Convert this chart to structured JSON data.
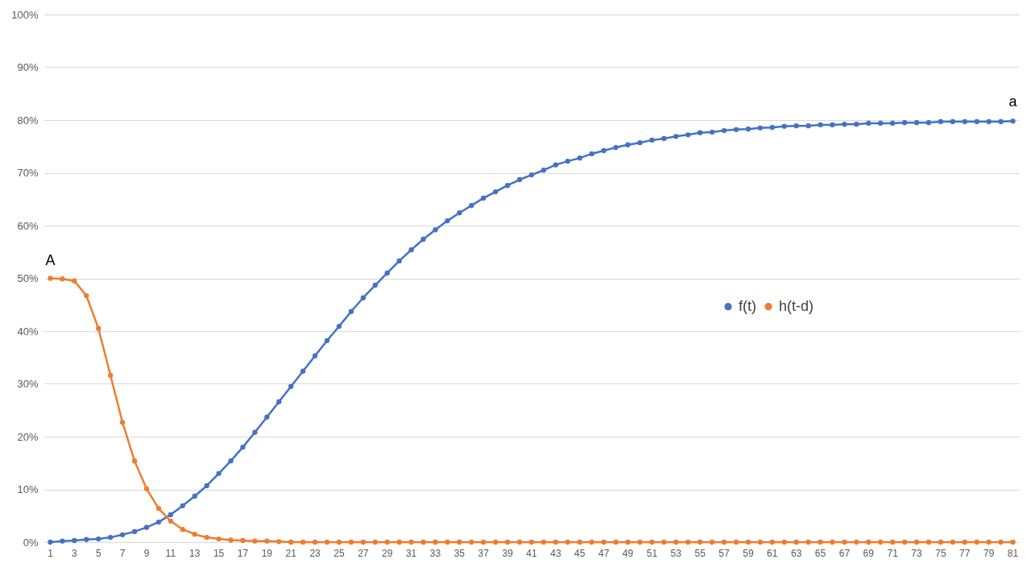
{
  "chart_data": {
    "type": "line",
    "x": [
      1,
      2,
      3,
      4,
      5,
      6,
      7,
      8,
      9,
      10,
      11,
      12,
      13,
      14,
      15,
      16,
      17,
      18,
      19,
      20,
      21,
      22,
      23,
      24,
      25,
      26,
      27,
      28,
      29,
      30,
      31,
      32,
      33,
      34,
      35,
      36,
      37,
      38,
      39,
      40,
      41,
      42,
      43,
      44,
      45,
      46,
      47,
      48,
      49,
      50,
      51,
      52,
      53,
      54,
      55,
      56,
      57,
      58,
      59,
      60,
      61,
      62,
      63,
      64,
      65,
      66,
      67,
      68,
      69,
      70,
      71,
      72,
      73,
      74,
      75,
      76,
      77,
      78,
      79,
      80,
      81
    ],
    "xlim": [
      0.5,
      81.5
    ],
    "xticks": [
      1,
      3,
      5,
      7,
      9,
      11,
      13,
      15,
      17,
      19,
      21,
      23,
      25,
      27,
      29,
      31,
      33,
      35,
      37,
      39,
      41,
      43,
      45,
      47,
      49,
      51,
      53,
      55,
      57,
      59,
      61,
      63,
      65,
      67,
      69,
      71,
      73,
      75,
      77,
      79,
      81
    ],
    "series": [
      {
        "name": "f(t)",
        "color": "#4472c4",
        "values": [
          0,
          0.2,
          0.3,
          0.5,
          0.6,
          0.9,
          1.4,
          2.0,
          2.8,
          3.8,
          5.2,
          6.9,
          8.7,
          10.7,
          13.0,
          15.4,
          18.0,
          20.8,
          23.7,
          26.6,
          29.5,
          32.4,
          35.3,
          38.2,
          40.9,
          43.7,
          46.3,
          48.7,
          51.0,
          53.3,
          55.4,
          57.4,
          59.2,
          60.9,
          62.4,
          63.8,
          65.2,
          66.4,
          67.6,
          68.7,
          69.6,
          70.5,
          71.5,
          72.2,
          72.8,
          73.6,
          74.2,
          74.8,
          75.3,
          75.7,
          76.2,
          76.5,
          76.9,
          77.2,
          77.6,
          77.7,
          78.0,
          78.2,
          78.3,
          78.5,
          78.6,
          78.8,
          78.9,
          78.9,
          79.1,
          79.1,
          79.2,
          79.2,
          79.4,
          79.4,
          79.4,
          79.5,
          79.5,
          79.5,
          79.7,
          79.7,
          79.7,
          79.7,
          79.7,
          79.7,
          79.8
        ]
      },
      {
        "name": "h(t-d)",
        "color": "#ed7d31",
        "values": [
          50.0,
          49.9,
          49.5,
          46.7,
          40.5,
          31.6,
          22.7,
          15.4,
          10.1,
          6.4,
          4.0,
          2.4,
          1.5,
          0.9,
          0.6,
          0.4,
          0.3,
          0.2,
          0.2,
          0.1,
          0,
          0,
          0,
          0,
          0,
          0,
          0,
          0,
          0,
          0,
          0,
          0,
          0,
          0,
          0,
          0,
          0,
          0,
          0,
          0,
          0,
          0,
          0,
          0,
          0,
          0,
          0,
          0,
          0,
          0,
          0,
          0,
          0,
          0,
          0,
          0,
          0,
          0,
          0,
          0,
          0,
          0,
          0,
          0,
          0,
          0,
          0,
          0,
          0,
          0,
          0,
          0,
          0,
          0,
          0,
          0,
          0,
          0,
          0,
          0,
          0
        ]
      }
    ],
    "ylim": [
      0,
      100
    ],
    "yticks": [
      {
        "value": 0,
        "label": "0%"
      },
      {
        "value": 10,
        "label": "10%"
      },
      {
        "value": 20,
        "label": "20%"
      },
      {
        "value": 30,
        "label": "30%"
      },
      {
        "value": 40,
        "label": "40%"
      },
      {
        "value": 50,
        "label": "50%"
      },
      {
        "value": 60,
        "label": "60%"
      },
      {
        "value": 70,
        "label": "70%"
      },
      {
        "value": 80,
        "label": "80%"
      },
      {
        "value": 90,
        "label": "90%"
      },
      {
        "value": 100,
        "label": "100%"
      }
    ],
    "grid": "y",
    "legend": "right",
    "marker": "circle",
    "line_style": "solid",
    "annotations": [
      {
        "text": "A",
        "x": 1,
        "y": 50
      },
      {
        "text": "a",
        "x": 81,
        "y": 80
      }
    ]
  }
}
